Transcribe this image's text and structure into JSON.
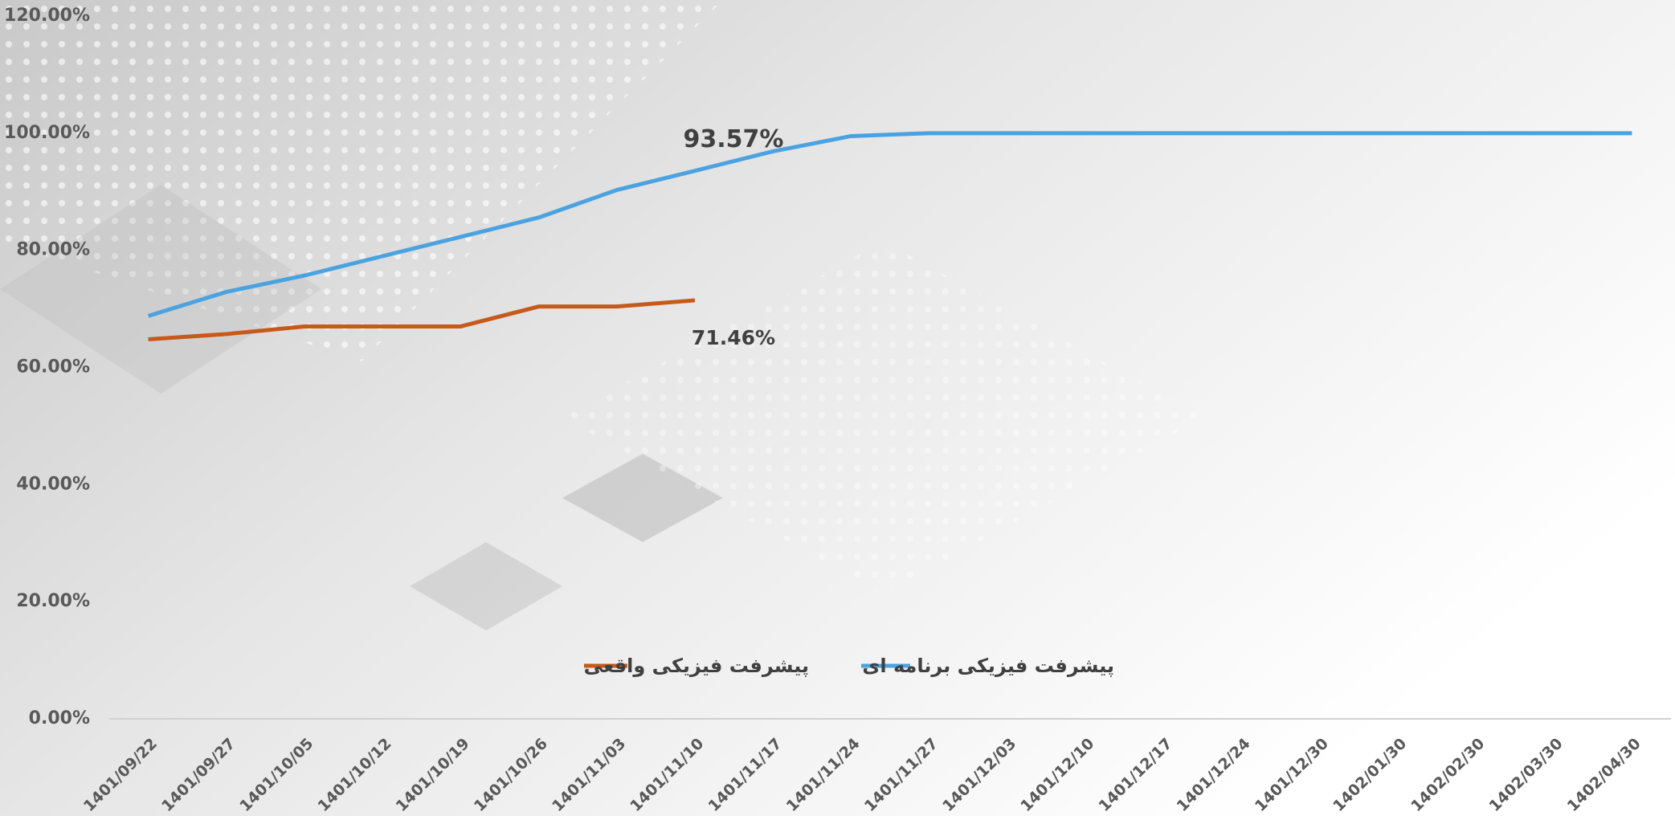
{
  "chart_data": {
    "type": "line",
    "categories": [
      "1401/09/22",
      "1401/09/27",
      "1401/10/05",
      "1401/10/12",
      "1401/10/19",
      "1401/10/26",
      "1401/11/03",
      "1401/11/10",
      "1401/11/17",
      "1401/11/24",
      "1401/11/27",
      "1401/12/03",
      "1401/12/10",
      "1401/12/17",
      "1401/12/24",
      "1401/12/30",
      "1402/01/30",
      "1402/02/30",
      "1402/03/30",
      "1402/04/30"
    ],
    "series": [
      {
        "name": "پیشرفت فیزیکی برنامه ای",
        "color": "#4aa3e0",
        "values": [
          68.8,
          72.9,
          75.7,
          79,
          82.3,
          85.6,
          90.3,
          93.57,
          96.9,
          99.5,
          100,
          100,
          100,
          100,
          100,
          100,
          100,
          100,
          100,
          100
        ],
        "value_labels": [
          null,
          null,
          null,
          null,
          null,
          null,
          null,
          "93.57%",
          null,
          null,
          null,
          null,
          null,
          null,
          null,
          null,
          null,
          null,
          null,
          null
        ]
      },
      {
        "name": "پیشرفت فیزیکی واقعی",
        "color": "#c55a1a",
        "values": [
          64.8,
          65.7,
          67,
          67,
          67,
          70.4,
          70.4,
          71.46,
          null,
          null,
          null,
          null,
          null,
          null,
          null,
          null,
          null,
          null,
          null,
          null
        ],
        "value_labels": [
          null,
          null,
          null,
          null,
          null,
          null,
          null,
          "71.46%",
          null,
          null,
          null,
          null,
          null,
          null,
          null,
          null,
          null,
          null,
          null,
          null
        ]
      }
    ],
    "ylim": [
      0,
      120
    ],
    "yticks": [
      {
        "value": 0,
        "label": "0.00%"
      },
      {
        "value": 20,
        "label": "20.00%"
      },
      {
        "value": 40,
        "label": "40.00%"
      },
      {
        "value": 60,
        "label": "60.00%"
      },
      {
        "value": 80,
        "label": "80.00%"
      },
      {
        "value": 100,
        "label": "100.00%"
      },
      {
        "value": 120,
        "label": "120.00%"
      }
    ],
    "grid": false,
    "legend": "bottom"
  }
}
